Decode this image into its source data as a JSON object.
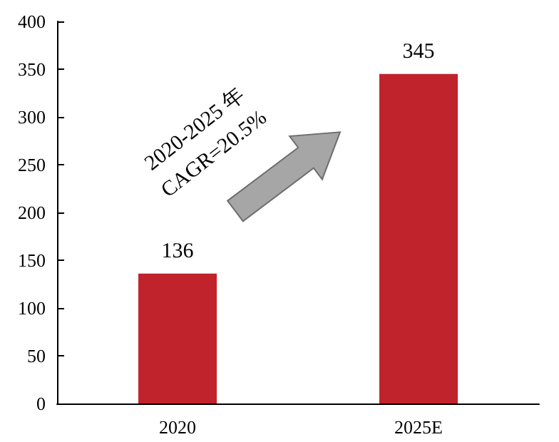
{
  "chart_data": {
    "type": "bar",
    "categories": [
      "2020",
      "2025E"
    ],
    "values": [
      136,
      345
    ],
    "color": "#c0232c",
    "ylim": [
      0,
      400
    ],
    "yticks": [
      0,
      50,
      100,
      150,
      200,
      250,
      300,
      350,
      400
    ],
    "grid": false,
    "data_labels": true,
    "annotations": [
      "2020-2025 年\nCAGR=20.5%"
    ]
  }
}
